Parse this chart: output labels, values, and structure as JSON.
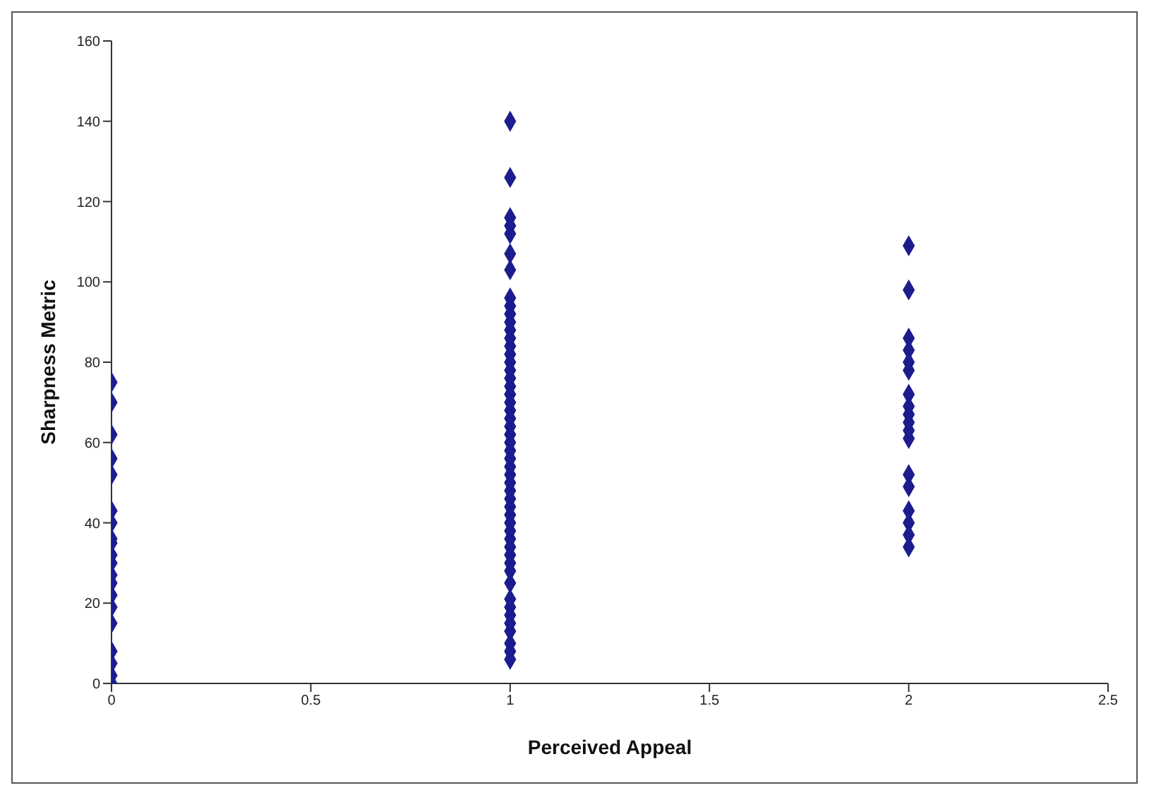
{
  "chart_data": {
    "type": "scatter",
    "xlabel": "Perceived Appeal",
    "ylabel": "Sharpness Metric",
    "xlim": [
      0,
      2.5
    ],
    "xticks": [
      0,
      0.5,
      1,
      1.5,
      2,
      2.5
    ],
    "ylim": [
      0,
      160
    ],
    "yticks": [
      0,
      20,
      40,
      60,
      80,
      100,
      120,
      140,
      160
    ],
    "grid": false,
    "legend": false,
    "marker": "diamond",
    "series": [
      {
        "color": "#1c1c8e",
        "x": [
          0,
          0,
          0,
          0,
          0,
          0,
          0,
          0,
          0,
          0,
          0,
          0,
          0,
          0,
          0,
          0,
          0,
          0,
          0,
          0,
          1,
          1,
          1,
          1,
          1,
          1,
          1,
          1,
          1,
          1,
          1,
          1,
          1,
          1,
          1,
          1,
          1,
          1,
          1,
          1,
          1,
          1,
          1,
          1,
          1,
          1,
          1,
          1,
          1,
          1,
          1,
          1,
          1,
          1,
          1,
          1,
          1,
          1,
          1,
          1,
          1,
          1,
          1,
          1,
          1,
          1,
          1,
          1,
          1,
          1,
          1,
          2,
          2,
          2,
          2,
          2,
          2,
          2,
          2,
          2,
          2,
          2,
          2,
          2,
          2,
          2,
          2,
          2,
          2
        ],
        "values": [
          75,
          70,
          62,
          56,
          52,
          43,
          40,
          36,
          35,
          32,
          30,
          27,
          25,
          22,
          19,
          15,
          8,
          5,
          2,
          0,
          140,
          126,
          116,
          114,
          112,
          107,
          103,
          96,
          94,
          92,
          90,
          88,
          86,
          84,
          82,
          80,
          78,
          76,
          74,
          72,
          70,
          68,
          66,
          64,
          62,
          60,
          58,
          56,
          54,
          52,
          50,
          48,
          46,
          44,
          42,
          40,
          38,
          36,
          34,
          32,
          30,
          28,
          25,
          21,
          19,
          17,
          15,
          13,
          10,
          8,
          6,
          109,
          98,
          86,
          83,
          80,
          78,
          72,
          69,
          67,
          65,
          63,
          61,
          52,
          49,
          43,
          40,
          37,
          34
        ]
      }
    ]
  }
}
